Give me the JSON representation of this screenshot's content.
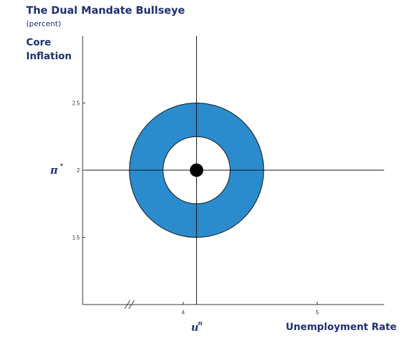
{
  "title": "The Dual Mandate Bullseye",
  "subtitle": "(percent)",
  "y_axis_title": "Core Inflation",
  "x_axis_title": "Unemployment Rate",
  "pi_star_symbol": "π",
  "pi_star_superscript": "*",
  "u_n_symbol": "u",
  "u_n_superscript": "n",
  "colors": {
    "title": "#1f2f73",
    "ring": "#2a8ccc",
    "axis": "#333333",
    "target": "#000000"
  },
  "chart_data": {
    "type": "scatter",
    "title": "The Dual Mandate Bullseye",
    "subtitle": "(percent)",
    "xlabel": "Unemployment Rate",
    "ylabel": "Core Inflation",
    "xlim": [
      3.25,
      5.5
    ],
    "ylim": [
      1.0,
      3.0
    ],
    "x_ticks": [
      {
        "value": 4,
        "label": "4"
      },
      {
        "value": 5,
        "label": "5"
      }
    ],
    "y_ticks": [
      {
        "value": 2.5,
        "label": "2.5"
      },
      {
        "value": 2,
        "label": "2"
      },
      {
        "value": 1.5,
        "label": "1.5"
      }
    ],
    "x_axis_break": true,
    "target": {
      "x": 4.1,
      "y": 2.0
    },
    "target_point_radius": 0.05,
    "ring": {
      "inner_radius": 0.25,
      "outer_radius": 0.5
    },
    "reference_lines": {
      "vertical_x": 4.1,
      "horizontal_y": 2.0
    },
    "grid": false
  }
}
